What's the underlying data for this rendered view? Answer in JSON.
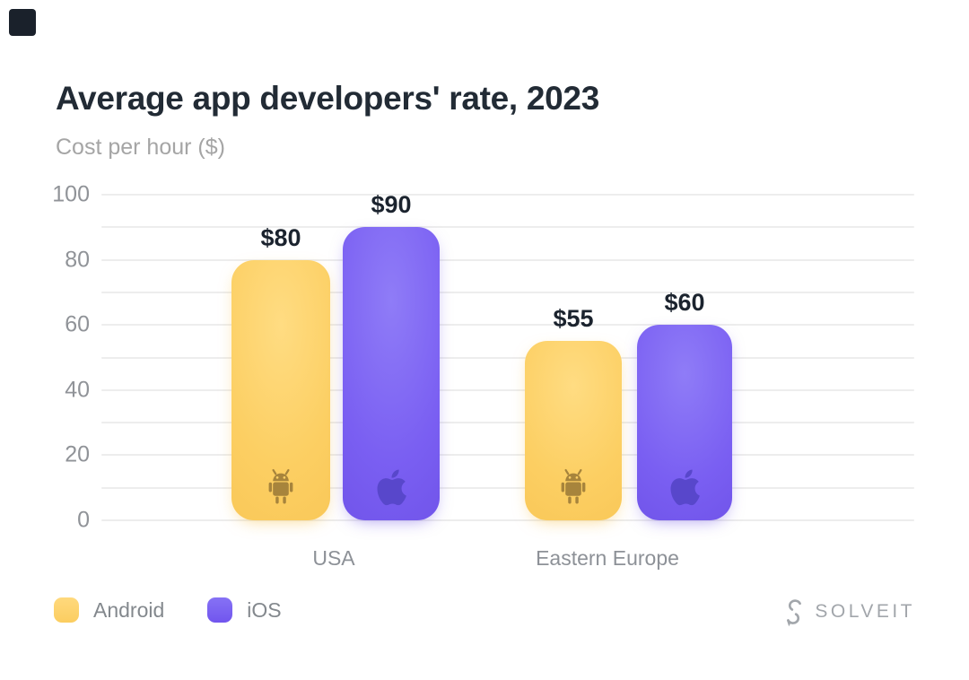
{
  "window": {
    "background": "#ffffff",
    "corner_square_color": "#1a212b"
  },
  "header": {
    "title": "Average app developers' rate, 2023",
    "subtitle": "Cost per hour ($)"
  },
  "chart_data": {
    "type": "bar",
    "title": "Average app developers' rate, 2023",
    "ylabel": "Cost per hour ($)",
    "xlabel": "",
    "categories": [
      "USA",
      "Eastern Europe"
    ],
    "series": [
      {
        "name": "Android",
        "values": [
          80,
          55
        ],
        "color": "#fccf63"
      },
      {
        "name": "iOS",
        "values": [
          90,
          60
        ],
        "color": "#7a5ff2"
      }
    ],
    "points": [
      {
        "category": "USA",
        "series": "Android",
        "value": 80,
        "label": "$80"
      },
      {
        "category": "USA",
        "series": "iOS",
        "value": 90,
        "label": "$90"
      },
      {
        "category": "Eastern Europe",
        "series": "Android",
        "value": 55,
        "label": "$55"
      },
      {
        "category": "Eastern Europe",
        "series": "iOS",
        "value": 60,
        "label": "$60"
      }
    ],
    "ylim": [
      0,
      100
    ],
    "yticks": [
      0,
      20,
      40,
      60,
      80,
      100
    ],
    "gridlines_every": 10,
    "grid": true,
    "legend_position": "bottom-left"
  },
  "legend": {
    "items": [
      {
        "label": "Android",
        "color": "#fccf63"
      },
      {
        "label": "iOS",
        "color": "#7a5ff2"
      }
    ]
  },
  "brand": {
    "name": "SOLVEIT"
  }
}
